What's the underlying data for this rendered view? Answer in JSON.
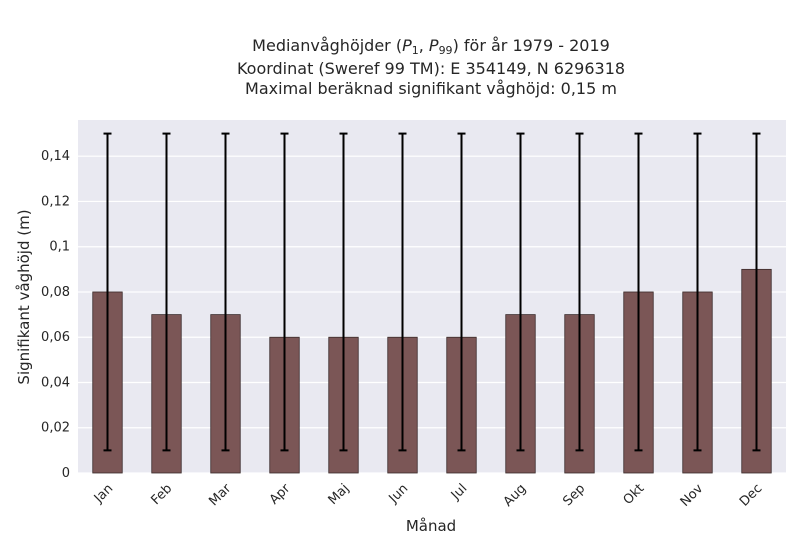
{
  "chart_data": {
    "type": "bar",
    "title_lines": [
      "Medianvåghöjder (P",
      "Koordinat (Sweref 99 TM): E 354149, N 6296318",
      "Maximal beräknad signifikant våghöjd: 0,15 m"
    ],
    "title_main": {
      "prefix": "Medianvåghöjder (",
      "p1": "P",
      "p1_sub": "1",
      "sep": ", ",
      "p99": "P",
      "p99_sub": "99",
      "suffix": ") för år 1979 - 2019"
    },
    "xlabel": "Månad",
    "ylabel": "Signifikant våghöjd (m)",
    "categories": [
      "Jan",
      "Feb",
      "Mar",
      "Apr",
      "Maj",
      "Jun",
      "Jul",
      "Aug",
      "Sep",
      "Okt",
      "Nov",
      "Dec"
    ],
    "values": [
      0.08,
      0.07,
      0.07,
      0.06,
      0.06,
      0.06,
      0.06,
      0.07,
      0.07,
      0.08,
      0.08,
      0.09
    ],
    "error_low": [
      0.01,
      0.01,
      0.01,
      0.01,
      0.01,
      0.01,
      0.01,
      0.01,
      0.01,
      0.01,
      0.01,
      0.01
    ],
    "error_high": [
      0.15,
      0.15,
      0.15,
      0.15,
      0.15,
      0.15,
      0.15,
      0.15,
      0.15,
      0.15,
      0.15,
      0.15
    ],
    "ylim": [
      0,
      0.156
    ],
    "yticks": [
      0,
      0.02,
      0.04,
      0.06,
      0.08,
      0.1,
      0.12,
      0.14
    ],
    "ytick_labels": [
      "0",
      "0,02",
      "0,04",
      "0,06",
      "0,08",
      "0,1",
      "0,12",
      "0,14"
    ],
    "grid": true,
    "colors": {
      "bar": "#7b5656",
      "bar_edge": "#3a2a2a",
      "error": "#000000",
      "background": "#e9e9f1",
      "grid": "#ffffff"
    }
  }
}
